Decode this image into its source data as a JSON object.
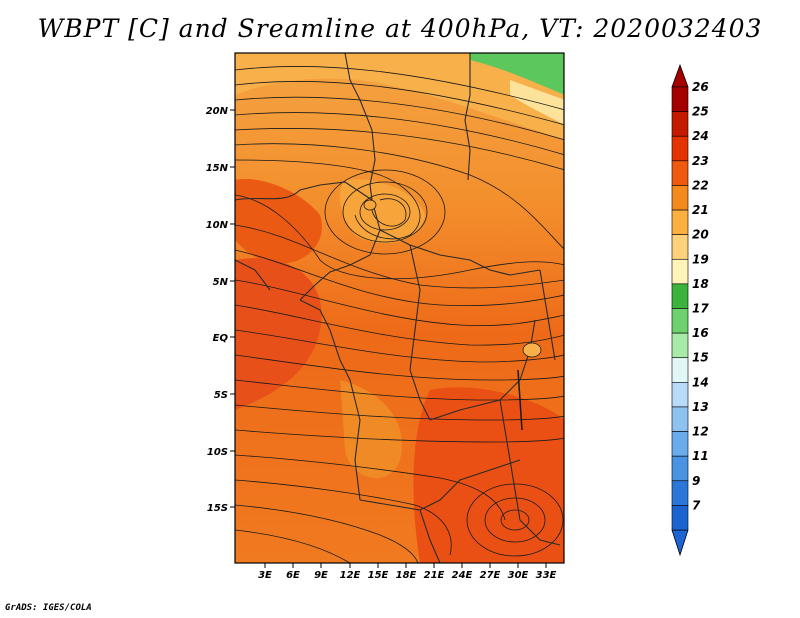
{
  "title": "WBPT [C] and Sreamline at 400hPa, VT: 2020032403",
  "footer": "GrADS: IGES/COLA",
  "map": {
    "lat_ticks": [
      "20N",
      "15N",
      "10N",
      "5N",
      "EQ",
      "5S",
      "10S",
      "15S"
    ],
    "lon_ticks": [
      "3E",
      "6E",
      "9E",
      "12E",
      "15E",
      "18E",
      "21E",
      "24E",
      "27E",
      "30E",
      "33E"
    ]
  },
  "colorbar": {
    "labels": [
      "26",
      "25",
      "24",
      "23",
      "22",
      "21",
      "20",
      "19",
      "18",
      "17",
      "16",
      "15",
      "14",
      "13",
      "12",
      "11",
      "9",
      "7"
    ],
    "colors": [
      "#a50000",
      "#c41a00",
      "#e23300",
      "#f05a10",
      "#f58a1c",
      "#fbb040",
      "#fdd27a",
      "#fff3b8",
      "#3cb43c",
      "#6dd26d",
      "#a8eba8",
      "#e1f7f7",
      "#b8dcf7",
      "#8ec3f1",
      "#6aabeb",
      "#4a93e2",
      "#2c78da",
      "#1b64d2"
    ]
  }
}
